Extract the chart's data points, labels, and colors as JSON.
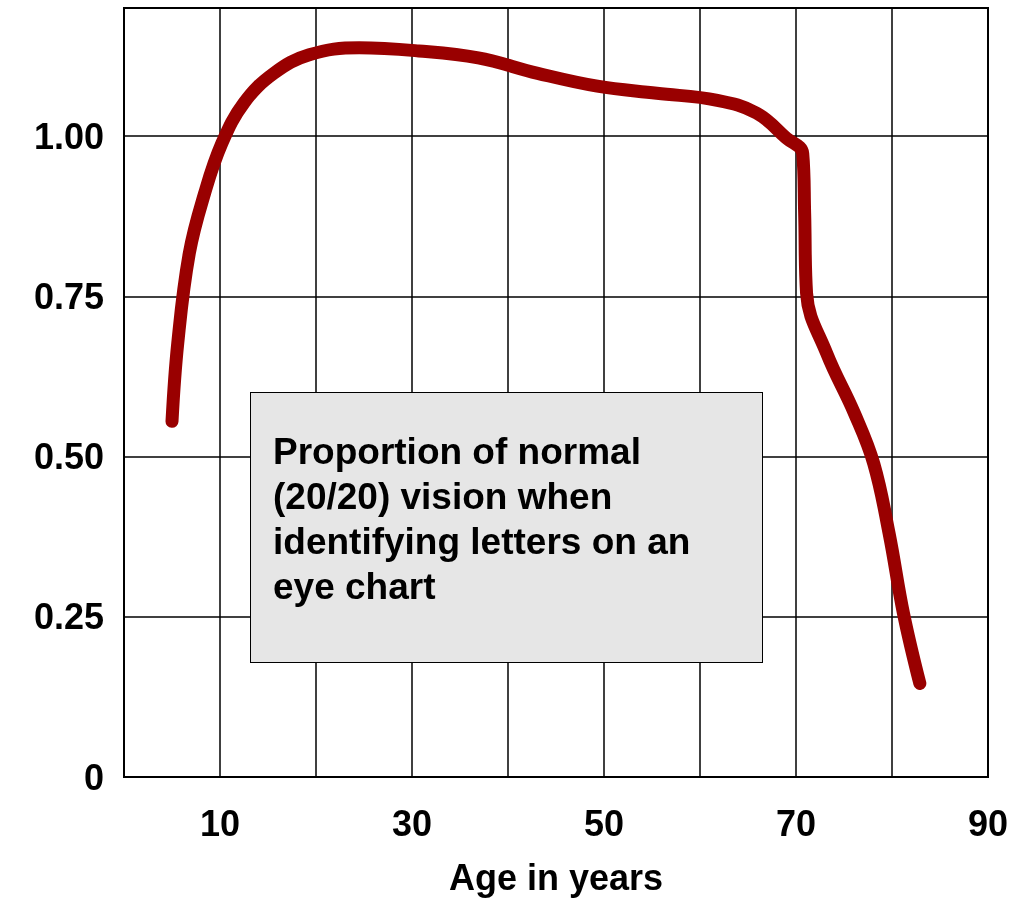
{
  "chart_data": {
    "type": "line",
    "xlabel": "Age in years",
    "annotations": [
      "Proportion of normal (20/20) vision when identifying letters on an eye chart"
    ],
    "xlim": [
      0,
      90
    ],
    "xticks": [
      10,
      {
        "value": 20,
        "label": null
      },
      30,
      {
        "value": 40,
        "label": null
      },
      50,
      {
        "value": 60,
        "label": null
      },
      70,
      {
        "value": 80,
        "label": null
      },
      90
    ],
    "ylim": [
      0,
      1.2
    ],
    "yticks": [
      0,
      0.25,
      {
        "value": 0.5,
        "label": "0.50"
      },
      0.75,
      {
        "value": 1,
        "label": "1.00"
      }
    ],
    "grid": true,
    "legend": false,
    "marker": "none",
    "line_style": "solid",
    "series": [
      {
        "color": "#990000",
        "x": [
          5.0,
          5.6,
          6.8,
          8.4,
          10.2,
          12.5,
          15.6,
          19.3,
          24.5,
          30.7,
          36.9,
          43.1,
          49.3,
          55.5,
          61.8,
          65.9,
          69.0,
          70.7,
          70.9,
          71.1,
          73.2,
          76.1,
          78.1,
          79.7,
          81.2,
          82.9
        ],
        "values": [
          0.555,
          0.677,
          0.817,
          0.911,
          0.989,
          1.052,
          1.098,
          1.127,
          1.138,
          1.133,
          1.122,
          1.098,
          1.078,
          1.067,
          1.056,
          1.036,
          0.997,
          0.973,
          0.88,
          0.755,
          0.661,
          0.567,
          0.489,
          0.38,
          0.255,
          0.146
        ]
      }
    ]
  }
}
